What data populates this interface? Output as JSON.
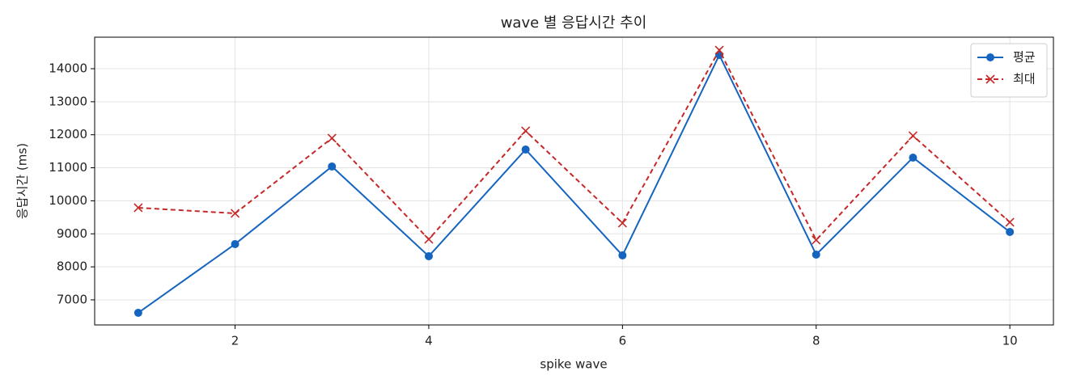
{
  "chart_data": {
    "type": "line",
    "title": "wave 별 응답시간 추이",
    "x_label": "spike wave",
    "y_label": "응답시간 (ms)",
    "x": [
      1,
      2,
      3,
      4,
      5,
      6,
      7,
      8,
      9,
      10
    ],
    "series": [
      {
        "name": "평균",
        "color": "#1565c0",
        "marker": "o",
        "linestyle": "solid",
        "values": [
          6608,
          8689,
          11039,
          8322,
          11553,
          8347,
          14416,
          8371,
          11308,
          9056
        ]
      },
      {
        "name": "최대",
        "color": "#c62828",
        "marker": "x",
        "linestyle": "dashed",
        "values": [
          9790,
          9619,
          11896,
          8836,
          12116,
          9325,
          14563,
          8812,
          11969,
          9350
        ]
      }
    ],
    "xlim": [
      0.55,
      10.45
    ],
    "xticks": [
      2,
      4,
      6,
      8,
      10
    ],
    "ylim": [
      6240,
      14955
    ],
    "yticks": [
      7000,
      8000,
      9000,
      10000,
      11000,
      12000,
      13000,
      14000
    ],
    "grid": true,
    "legend": "upper right"
  }
}
